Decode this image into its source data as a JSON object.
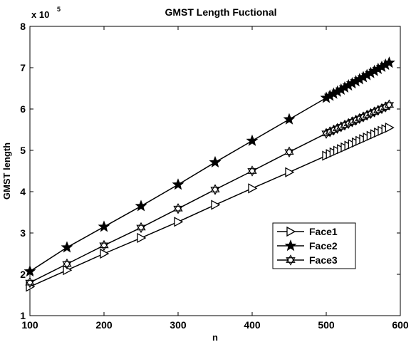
{
  "chart_data": {
    "type": "line",
    "title": "GMST Length Fuctional",
    "xlabel": "n",
    "ylabel": "GMST length",
    "y_multiplier_base": "x 10",
    "y_multiplier_exponent": "5",
    "xlim": [
      100,
      600
    ],
    "ylim": [
      1,
      8
    ],
    "x_ticks": [
      100,
      200,
      300,
      400,
      500,
      600
    ],
    "y_ticks": [
      1,
      2,
      3,
      4,
      5,
      6,
      7,
      8
    ],
    "grid": false,
    "legend_position": "lower-right",
    "x": [
      100,
      150,
      200,
      250,
      300,
      350,
      400,
      450,
      500,
      505,
      510,
      515,
      520,
      525,
      530,
      535,
      540,
      545,
      550,
      555,
      560,
      565,
      570,
      575,
      580,
      585
    ],
    "series": [
      {
        "name": "Face1",
        "marker": "triangle-right",
        "values": [
          1.7,
          2.1,
          2.5,
          2.88,
          3.27,
          3.68,
          4.08,
          4.47,
          4.87,
          4.91,
          4.95,
          4.99,
          5.03,
          5.07,
          5.11,
          5.15,
          5.19,
          5.23,
          5.27,
          5.31,
          5.35,
          5.39,
          5.43,
          5.47,
          5.51,
          5.55
        ]
      },
      {
        "name": "Face2",
        "marker": "star-filled",
        "values": [
          2.07,
          2.65,
          3.15,
          3.65,
          4.17,
          4.71,
          5.23,
          5.75,
          6.27,
          6.32,
          6.37,
          6.42,
          6.47,
          6.52,
          6.57,
          6.62,
          6.67,
          6.72,
          6.77,
          6.82,
          6.87,
          6.92,
          6.97,
          7.02,
          7.07,
          7.12
        ]
      },
      {
        "name": "Face3",
        "marker": "star-open",
        "values": [
          1.8,
          2.25,
          2.7,
          3.13,
          3.59,
          4.05,
          4.5,
          4.96,
          5.41,
          5.45,
          5.49,
          5.53,
          5.57,
          5.61,
          5.65,
          5.69,
          5.73,
          5.77,
          5.81,
          5.85,
          5.89,
          5.93,
          5.97,
          6.01,
          6.05,
          6.1
        ]
      }
    ]
  }
}
